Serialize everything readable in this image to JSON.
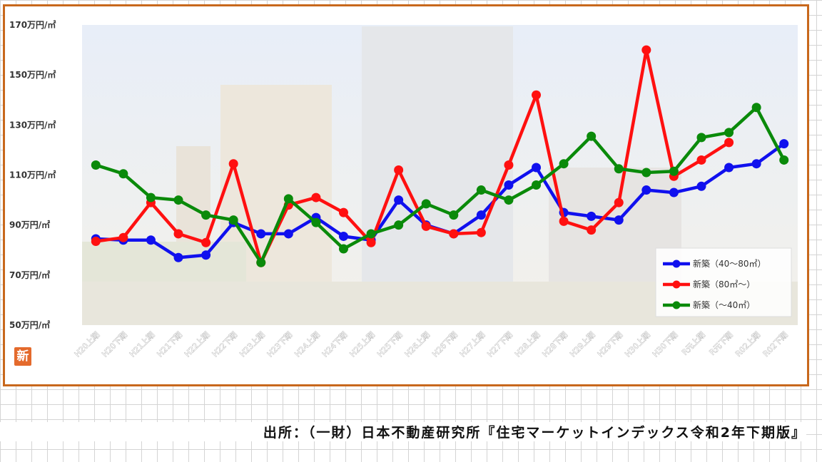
{
  "chart_data": {
    "type": "line",
    "title": "",
    "xlabel": "",
    "ylabel": "",
    "ylim": [
      50,
      170
    ],
    "yticks": [
      {
        "value": 50,
        "label": "50万円/㎡"
      },
      {
        "value": 70,
        "label": "70万円/㎡"
      },
      {
        "value": 90,
        "label": "90万円/㎡"
      },
      {
        "value": 110,
        "label": "110万円/㎡"
      },
      {
        "value": 130,
        "label": "130万円/㎡"
      },
      {
        "value": 150,
        "label": "150万円/㎡"
      },
      {
        "value": 170,
        "label": "170万円/㎡"
      }
    ],
    "categories": [
      "H20上期",
      "H20下期",
      "H21上期",
      "H21下期",
      "H22上期",
      "H22下期",
      "H23上期",
      "H23下期",
      "H24上期",
      "H24下期",
      "H25上期",
      "H25下期",
      "H26上期",
      "H26下期",
      "H27上期",
      "H27下期",
      "H28上期",
      "H28下期",
      "H29上期",
      "H29下期",
      "H30上期",
      "H30下期",
      "R元上期",
      "R元下期",
      "R02上期",
      "R02下期"
    ],
    "grid": false,
    "legend_position": "bottom-right",
    "series": [
      {
        "name": "新築（40～80㎡）",
        "color": "#1010ee",
        "values": [
          84.5,
          84,
          84,
          77,
          78,
          91,
          86.5,
          86.5,
          93,
          85.5,
          84,
          100,
          90,
          86.5,
          94,
          106,
          113,
          95,
          93.5,
          92,
          104,
          103,
          105.5,
          113,
          114.5,
          122.5
        ]
      },
      {
        "name": "新築（80㎡～）",
        "color": "#ff1010",
        "values": [
          83.5,
          85,
          99,
          86.5,
          83,
          114.5,
          75,
          98,
          101,
          95,
          83,
          112,
          89.5,
          86.5,
          87,
          114,
          142,
          91.5,
          88,
          99,
          160,
          109.5,
          116,
          123,
          null,
          null
        ]
      },
      {
        "name": "新築（～40㎡）",
        "color": "#0a8a0a",
        "values": [
          114,
          110.5,
          101,
          100,
          94,
          92,
          75,
          100.5,
          91,
          80.5,
          86.5,
          90,
          98.5,
          94,
          104,
          100,
          106,
          114.5,
          125.5,
          112.5,
          111,
          111.5,
          125,
          127,
          137,
          116
        ]
      }
    ]
  },
  "logo": {
    "text": "新"
  },
  "caption": "出所：（一財）日本不動産研究所『住宅マーケットインデックス令和2年下期版』"
}
